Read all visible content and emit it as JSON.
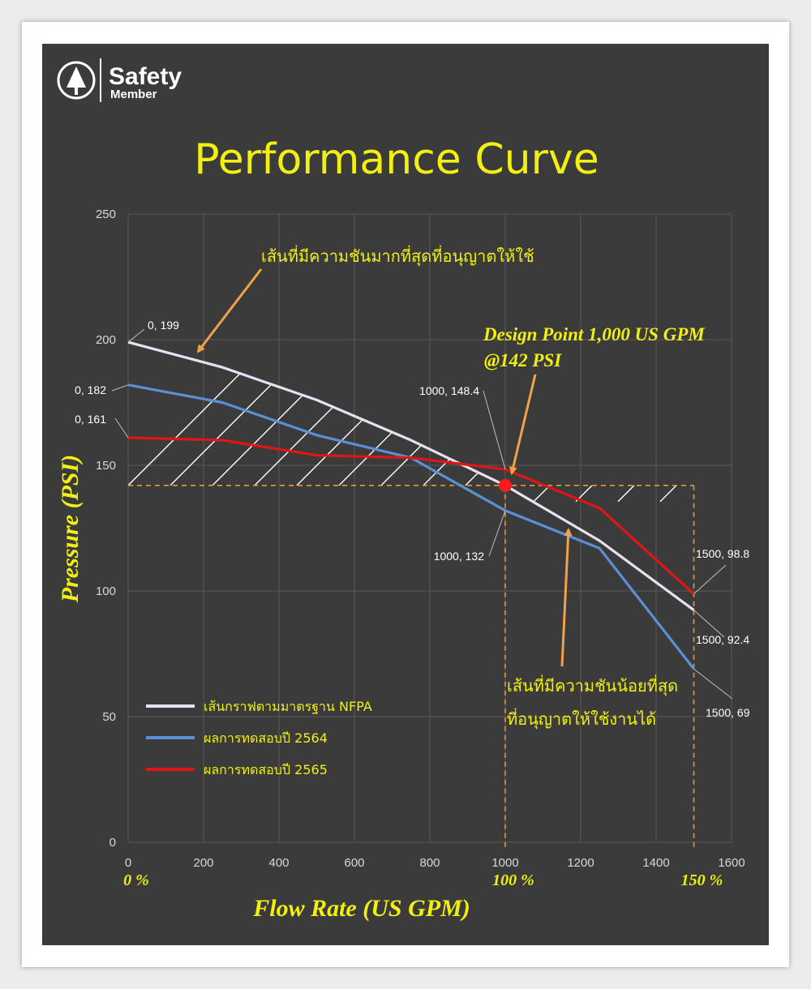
{
  "brand": {
    "name": "Safety",
    "sub": "Member",
    "icon": "tree-circle-icon"
  },
  "colors": {
    "background": "#3b3b3b",
    "grid": "#595959",
    "nfpa": "#e8e0f0",
    "test2564": "#5b8fd6",
    "test2565": "#e01616",
    "accent_yellow": "#f2ef12",
    "guide_orange": "#e69a3c",
    "arrow_orange": "#f0a24a",
    "design_point": "#ff1a1a",
    "hatch": "#ffffff",
    "tick_text": "#d8d8d8"
  },
  "chart_data": {
    "type": "line",
    "title": "Performance Curve",
    "xlabel": "Flow Rate (US GPM)",
    "ylabel": "Pressure (PSI)",
    "xlim": [
      0,
      1600
    ],
    "ylim": [
      0,
      250
    ],
    "xticks": [
      "0",
      "200",
      "400",
      "600",
      "800",
      "1000",
      "1200",
      "1400",
      "1600"
    ],
    "yticks": [
      "0",
      "50",
      "100",
      "150",
      "200",
      "250"
    ],
    "grid": true,
    "legend_position": "bottom-left",
    "percent_labels": [
      {
        "x": 0,
        "text": "0 %"
      },
      {
        "x": 1000,
        "text": "100 %"
      },
      {
        "x": 1500,
        "text": "150 %"
      }
    ],
    "series": [
      {
        "key": "nfpa",
        "name": "เส้นกราฟตามมาตรฐาน NFPA",
        "x": [
          0,
          250,
          500,
          750,
          1000,
          1250,
          1500
        ],
        "y": [
          199,
          189,
          176,
          160,
          142,
          120,
          92.4
        ]
      },
      {
        "key": "t2564",
        "name": "ผลการทดสอบปี 2564",
        "x": [
          0,
          250,
          500,
          750,
          1000,
          1250,
          1500
        ],
        "y": [
          182,
          175,
          162,
          153,
          132,
          117,
          69
        ]
      },
      {
        "key": "t2565",
        "name": "ผลการทดสอบปี 2565",
        "x": [
          0,
          250,
          500,
          750,
          1000,
          1250,
          1500
        ],
        "y": [
          161,
          160,
          154,
          153,
          148.4,
          133,
          98.8
        ]
      }
    ],
    "data_labels": [
      "0, 199",
      "0, 182",
      "0, 161",
      "1000, 148.4",
      "1000, 132",
      "1500, 98.8",
      "1500, 92.4",
      "1500, 69"
    ],
    "design_point": {
      "x": 1000,
      "y": 142,
      "label_line1": "Design Point 1,000 US GPM",
      "label_line2": "@142 PSI"
    },
    "guide_pressure": 142,
    "annotations": {
      "upper": "เส้นที่มีความชันมากที่สุดที่อนุญาตให้ใช้",
      "lower_line1": "เส้นที่มีความชันน้อยที่สุด",
      "lower_line2": "ที่อนุญาตให้ใช้งานได้"
    }
  }
}
